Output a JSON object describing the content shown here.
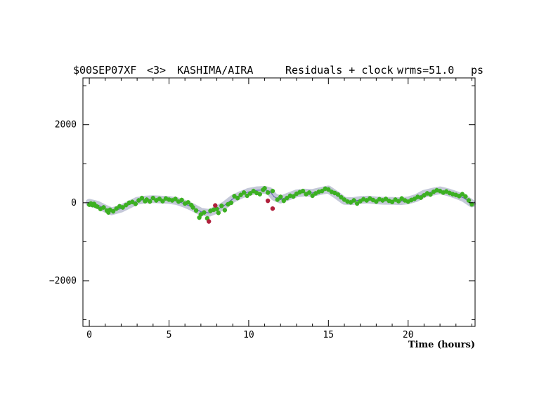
{
  "header": {
    "experiment": "$00SEP07XF",
    "band": "<3>",
    "baseline": "KASHIMA/AIRA",
    "mode": "Residuals + clock",
    "wrms_label": "wrms=51.0",
    "units": "ps"
  },
  "chart_data": {
    "type": "scatter",
    "title": "$00SEP07XF <3> KASHIMA/AIRA     Residuals + clock wrms=51.0  ps",
    "xlabel": "Time (hours)",
    "ylabel": "",
    "xlim": [
      -0.4,
      24.2
    ],
    "ylim": [
      -3170,
      3200
    ],
    "x_ticks": [
      0,
      5,
      10,
      15,
      20
    ],
    "x_tick_labels": [
      "0",
      "5",
      "10",
      "15",
      "20"
    ],
    "y_ticks": [
      -2000,
      0,
      2000
    ],
    "y_tick_labels": [
      "−2000",
      "0",
      "2000"
    ],
    "grid": false,
    "legend": "none",
    "colors": {
      "good_points": "#3cb022",
      "outliers": "#b0203c",
      "model_line": "#5a5ab0",
      "model_band": "#c4c8d8",
      "axis": "#000000"
    },
    "model_curve": {
      "x": [
        0.0,
        0.5,
        1.0,
        1.4,
        2.0,
        2.5,
        3.0,
        3.5,
        4.0,
        4.5,
        5.0,
        5.5,
        6.0,
        6.5,
        7.0,
        7.5,
        8.0,
        8.5,
        9.0,
        9.5,
        10.0,
        10.5,
        11.0,
        11.3,
        11.6,
        12.0,
        12.5,
        13.0,
        13.5,
        14.0,
        14.5,
        15.0,
        15.5,
        16.0,
        16.5,
        17.0,
        17.5,
        18.0,
        18.5,
        19.0,
        19.5,
        20.0,
        20.5,
        21.0,
        21.5,
        22.0,
        22.5,
        23.0,
        23.5,
        24.0
      ],
      "y": [
        0,
        -50,
        -150,
        -220,
        -150,
        -50,
        50,
        80,
        90,
        80,
        70,
        40,
        -30,
        -120,
        -230,
        -260,
        -180,
        -60,
        100,
        200,
        280,
        320,
        330,
        300,
        150,
        80,
        160,
        240,
        260,
        250,
        300,
        340,
        200,
        50,
        40,
        70,
        80,
        60,
        50,
        50,
        40,
        60,
        120,
        230,
        280,
        320,
        270,
        200,
        120,
        -20
      ]
    },
    "series": [
      {
        "kind": "used",
        "x": [
          0.0,
          0.1,
          0.2,
          0.3,
          0.4,
          0.5,
          0.7,
          0.9,
          1.1,
          1.2,
          1.3,
          1.5,
          1.7,
          1.9,
          2.1,
          2.3,
          2.5,
          2.7,
          2.9,
          3.1,
          3.3,
          3.5,
          3.6,
          3.8,
          4.0,
          4.2,
          4.4,
          4.6,
          4.8,
          5.0,
          5.2,
          5.4,
          5.6,
          5.8,
          6.0,
          6.2,
          6.4,
          6.5,
          6.7,
          6.9,
          7.0,
          7.2,
          7.4,
          7.6,
          7.8,
          8.0,
          8.1,
          8.3,
          8.5,
          8.7,
          8.9,
          9.1,
          9.3,
          9.5,
          9.7,
          9.9,
          10.1,
          10.3,
          10.5,
          10.7,
          10.9,
          11.0,
          11.2,
          11.5,
          11.8,
          12.0,
          12.2,
          12.4,
          12.6,
          12.8,
          13.0,
          13.2,
          13.4,
          13.6,
          13.8,
          14.0,
          14.2,
          14.4,
          14.6,
          14.8,
          15.0,
          15.2,
          15.4,
          15.6,
          15.8,
          16.0,
          16.2,
          16.4,
          16.6,
          16.8,
          17.0,
          17.2,
          17.4,
          17.6,
          17.8,
          18.0,
          18.2,
          18.4,
          18.6,
          18.8,
          19.0,
          19.2,
          19.4,
          19.6,
          19.8,
          20.0,
          20.2,
          20.4,
          20.6,
          20.8,
          21.0,
          21.2,
          21.4,
          21.6,
          21.8,
          22.0,
          22.2,
          22.4,
          22.6,
          22.8,
          23.0,
          23.2,
          23.4,
          23.6,
          23.8,
          24.0
        ],
        "y": [
          -50,
          -20,
          -60,
          -30,
          -80,
          -100,
          -160,
          -120,
          -200,
          -250,
          -180,
          -220,
          -150,
          -90,
          -120,
          -60,
          0,
          20,
          -30,
          60,
          120,
          40,
          80,
          30,
          120,
          60,
          100,
          40,
          110,
          80,
          60,
          100,
          30,
          70,
          -20,
          10,
          -60,
          -120,
          -200,
          -380,
          -300,
          -250,
          -400,
          -210,
          -180,
          -160,
          -260,
          -80,
          -190,
          -40,
          0,
          170,
          120,
          200,
          260,
          180,
          240,
          300,
          250,
          220,
          330,
          370,
          260,
          300,
          80,
          150,
          50,
          120,
          180,
          160,
          230,
          270,
          300,
          220,
          260,
          180,
          240,
          280,
          300,
          360,
          340,
          280,
          250,
          210,
          140,
          80,
          30,
          10,
          60,
          -20,
          40,
          90,
          60,
          110,
          70,
          30,
          90,
          60,
          100,
          50,
          20,
          80,
          40,
          110,
          60,
          30,
          70,
          100,
          150,
          130,
          190,
          240,
          210,
          280,
          320,
          300,
          260,
          290,
          250,
          220,
          200,
          170,
          220,
          160,
          60,
          -40
        ],
        "yerr": 60
      },
      {
        "kind": "outlier",
        "x": [
          7.5,
          7.9,
          11.2,
          11.5
        ],
        "y": [
          -480,
          -70,
          50,
          -150
        ],
        "yerr": 60
      }
    ]
  }
}
